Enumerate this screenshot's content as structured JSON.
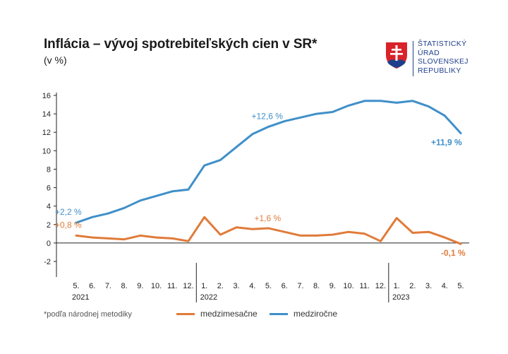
{
  "header": {
    "title": "Inflácia – vývoj spotrebiteľských cien v SR*",
    "subtitle": "(v %)"
  },
  "logo": {
    "lines": [
      "ŠTATISTICKÝ",
      "ÚRAD",
      "SLOVENSKEJ",
      "REPUBLIKY"
    ],
    "color": "#1e3f8c",
    "emblem": "slovak-coat-of-arms-icon"
  },
  "footnote": "*podľa národnej metodiky",
  "colors": {
    "mom": "#e07b39",
    "yoy": "#3f8fc9",
    "axis": "#222222",
    "grid": "#cccccc"
  },
  "chart_data": {
    "type": "line",
    "title": "Inflácia – vývoj spotrebiteľských cien v SR*",
    "ylabel": "(v %)",
    "ylim": [
      -2,
      16
    ],
    "yticks": [
      -2,
      0,
      2,
      4,
      6,
      8,
      10,
      12,
      14,
      16
    ],
    "x": [
      "5.",
      "6.",
      "7.",
      "8.",
      "9.",
      "10.",
      "11.",
      "12.",
      "1.",
      "2.",
      "3.",
      "4.",
      "5.",
      "6.",
      "7.",
      "8.",
      "9.",
      "10.",
      "11.",
      "12.",
      "1.",
      "2.",
      "3.",
      "4.",
      "5."
    ],
    "years": [
      {
        "label": "2021",
        "start": 0
      },
      {
        "label": "2022",
        "start": 8
      },
      {
        "label": "2023",
        "start": 20
      }
    ],
    "series": [
      {
        "name": "medzimesačne",
        "color": "#e07b39",
        "values": [
          0.8,
          0.6,
          0.5,
          0.4,
          0.8,
          0.6,
          0.5,
          0.2,
          2.8,
          0.9,
          1.7,
          1.5,
          1.6,
          1.2,
          0.8,
          0.8,
          0.9,
          1.2,
          1.0,
          0.2,
          2.7,
          1.1,
          1.2,
          0.6,
          -0.1
        ],
        "annotations": [
          {
            "index": 0,
            "text": "+0,8 %",
            "bold": false
          },
          {
            "index": 12,
            "text": "+1,6 %",
            "bold": false
          },
          {
            "index": 24,
            "text": "-0,1 %",
            "bold": true
          }
        ]
      },
      {
        "name": "medziročne",
        "color": "#3f8fc9",
        "values": [
          2.2,
          2.8,
          3.2,
          3.8,
          4.6,
          5.1,
          5.6,
          5.8,
          8.4,
          9.0,
          10.4,
          11.8,
          12.6,
          13.2,
          13.6,
          14.0,
          14.2,
          14.9,
          15.4,
          15.4,
          15.2,
          15.4,
          14.8,
          13.8,
          11.9
        ],
        "annotations": [
          {
            "index": 0,
            "text": "+2,2 %",
            "bold": false
          },
          {
            "index": 12,
            "text": "+12,6 %",
            "bold": false
          },
          {
            "index": 24,
            "text": "+11,9 %",
            "bold": true
          }
        ]
      }
    ],
    "grid": false,
    "legend_position": "bottom"
  }
}
